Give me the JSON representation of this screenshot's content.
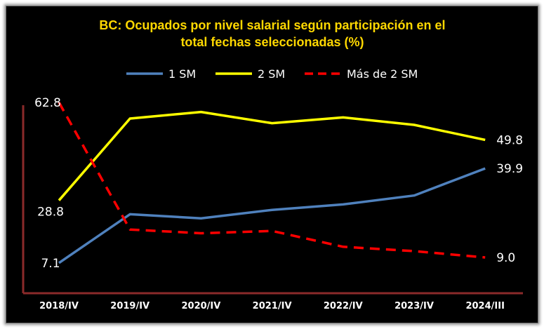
{
  "chart_data": {
    "type": "line",
    "title_lines": [
      "BC: Ocupados por nivel salarial según participación en el",
      "total fechas seleccionadas (%)"
    ],
    "categories": [
      "2018/IV",
      "2019/IV",
      "2020/IV",
      "2021/IV",
      "2022/IV",
      "2023/IV",
      "2024/III"
    ],
    "ylim": [
      0,
      70
    ],
    "grid": false,
    "legend_position": "top",
    "series": [
      {
        "name": "1 SM",
        "color": "#4f81bd",
        "dash": "solid",
        "values": [
          7.1,
          24.0,
          22.6,
          25.5,
          27.4,
          30.5,
          39.9
        ],
        "labels": [
          "7.1",
          "",
          "",
          "",
          "",
          "",
          "39.9"
        ]
      },
      {
        "name": "2 SM",
        "color": "#ffff00",
        "dash": "solid",
        "values": [
          28.8,
          57.2,
          59.5,
          55.6,
          57.6,
          55.0,
          49.8
        ],
        "labels": [
          "28.8",
          "",
          "",
          "",
          "",
          "",
          "49.8"
        ]
      },
      {
        "name": "Más de 2 SM",
        "color": "#ff0000",
        "dash": "dashed",
        "values": [
          62.8,
          18.7,
          17.4,
          18.2,
          12.7,
          11.2,
          9.0
        ],
        "labels": [
          "62.8",
          "",
          "",
          "",
          "",
          "",
          "9.0"
        ]
      }
    ]
  }
}
